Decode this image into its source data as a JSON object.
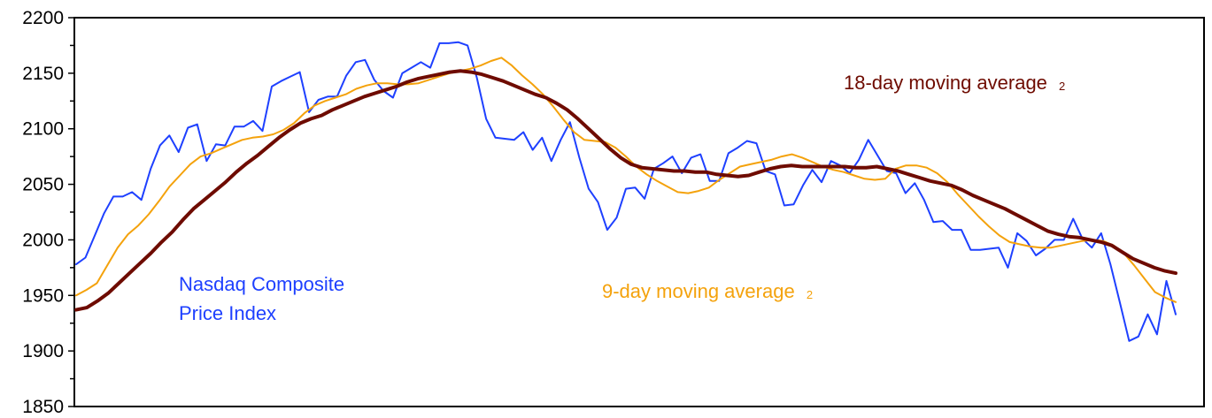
{
  "chart_data": {
    "type": "line",
    "title": "",
    "xlabel": "",
    "ylabel": "",
    "ylim": [
      1850,
      2200
    ],
    "yticks": [
      1850,
      1900,
      1950,
      2000,
      2050,
      2100,
      2150,
      2200
    ],
    "grid": false,
    "legend": "none",
    "colors": {
      "frame": "#000000",
      "text": "#000000"
    },
    "series": [
      {
        "name": "Nasdaq Composite Price Index",
        "label_lines": [
          "Nasdaq Composite",
          "Price Index"
        ],
        "footnote": "",
        "color": "#1e40ff",
        "width": 2,
        "values": [
          1978,
          1984,
          2004,
          2024,
          2039,
          2039,
          2043,
          2036,
          2064,
          2085,
          2094,
          2079,
          2101,
          2104,
          2071,
          2086,
          2085,
          2102,
          2102,
          2107,
          2098,
          2138,
          2143,
          2147,
          2151,
          2115,
          2126,
          2129,
          2129,
          2148,
          2160,
          2162,
          2144,
          2134,
          2128,
          2150,
          2155,
          2160,
          2155,
          2177,
          2177,
          2178,
          2175,
          2146,
          2109,
          2092,
          2091,
          2090,
          2097,
          2081,
          2092,
          2071,
          2090,
          2106,
          2074,
          2046,
          2034,
          2009,
          2020,
          2046,
          2047,
          2037,
          2064,
          2069,
          2075,
          2060,
          2074,
          2077,
          2053,
          2053,
          2078,
          2083,
          2089,
          2087,
          2062,
          2059,
          2031,
          2032,
          2049,
          2063,
          2052,
          2071,
          2067,
          2060,
          2072,
          2090,
          2076,
          2062,
          2060,
          2042,
          2051,
          2036,
          2016,
          2017,
          2009,
          2009,
          1991,
          1991,
          1992,
          1993,
          1975,
          2006,
          1999,
          1986,
          1992,
          2000,
          2000,
          2019,
          2001,
          1993,
          2006,
          1978,
          1944,
          1909,
          1913,
          1933,
          1915,
          1963,
          1933
        ]
      },
      {
        "name": "9-day moving average",
        "footnote": "2",
        "color": "#f4a20c",
        "width": 2,
        "values": [
          1950,
          1955,
          1961,
          1977,
          1993,
          2005,
          2013,
          2023,
          2035,
          2048,
          2058,
          2068,
          2075,
          2078,
          2082,
          2086,
          2090,
          2092,
          2093,
          2095,
          2099,
          2105,
          2114,
          2121,
          2125,
          2128,
          2131,
          2136,
          2139,
          2141,
          2141,
          2140,
          2140,
          2141,
          2144,
          2147,
          2150,
          2152,
          2154,
          2157,
          2161,
          2164,
          2157,
          2148,
          2140,
          2131,
          2120,
          2108,
          2097,
          2090,
          2089,
          2088,
          2083,
          2075,
          2066,
          2059,
          2053,
          2048,
          2043,
          2042,
          2044,
          2047,
          2054,
          2060,
          2066,
          2068,
          2070,
          2072,
          2075,
          2077,
          2074,
          2070,
          2066,
          2063,
          2061,
          2058,
          2055,
          2054,
          2055,
          2064,
          2067,
          2067,
          2065,
          2060,
          2052,
          2041,
          2031,
          2021,
          2012,
          2004,
          1998,
          1996,
          1994,
          1993,
          1993,
          1995,
          1997,
          1999,
          2000,
          1999,
          1995,
          1988,
          1977,
          1965,
          1953,
          1948,
          1944
        ]
      },
      {
        "name": "18-day moving average",
        "footnote": "2",
        "color": "#6e0b00",
        "width": 4,
        "values": [
          1937,
          1939,
          1945,
          1952,
          1961,
          1970,
          1979,
          1988,
          1998,
          2007,
          2018,
          2028,
          2036,
          2044,
          2052,
          2061,
          2069,
          2076,
          2084,
          2092,
          2099,
          2105,
          2109,
          2112,
          2117,
          2121,
          2125,
          2129,
          2132,
          2135,
          2138,
          2142,
          2145,
          2147,
          2149,
          2151,
          2152,
          2151,
          2149,
          2146,
          2143,
          2139,
          2135,
          2131,
          2128,
          2123,
          2117,
          2109,
          2100,
          2091,
          2082,
          2074,
          2068,
          2065,
          2064,
          2063,
          2062,
          2062,
          2061,
          2061,
          2059,
          2058,
          2057,
          2058,
          2061,
          2064,
          2066,
          2067,
          2066,
          2066,
          2066,
          2066,
          2066,
          2065,
          2065,
          2066,
          2064,
          2062,
          2059,
          2056,
          2053,
          2051,
          2049,
          2045,
          2040,
          2036,
          2032,
          2028,
          2023,
          2018,
          2013,
          2008,
          2005,
          2003,
          2002,
          2000,
          1998,
          1995,
          1989,
          1983,
          1979,
          1975,
          1972,
          1970
        ]
      }
    ]
  }
}
